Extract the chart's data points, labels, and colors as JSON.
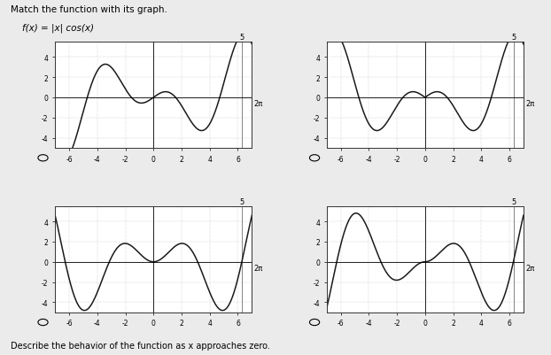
{
  "title_text": "Match the function with its graph.",
  "func_label": "f(x) = |x| cos(x)",
  "xlim": [
    -7.0,
    7.0
  ],
  "ylim": [
    -5.0,
    5.5
  ],
  "xticks": [
    -6,
    -4,
    -2,
    0,
    2,
    4,
    6
  ],
  "yticks": [
    -4,
    -2,
    0,
    2,
    4
  ],
  "two_pi_label": "2π",
  "five_label": "5",
  "plot_bg": "#ffffff",
  "fig_bg": "#ebebeb",
  "line_color": "#1a1a1a",
  "bottom_text": "Describe the behavior of the function as x approaches zero.",
  "functions": [
    "x_cos_x",
    "absx_cos_x",
    "x_sin_x",
    "absx_sin_x"
  ]
}
